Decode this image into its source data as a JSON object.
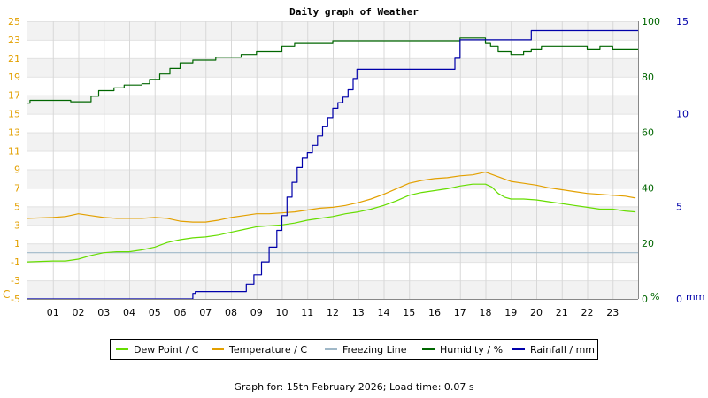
{
  "chart_data": {
    "type": "line",
    "title": "Daily graph of Weather",
    "x_tick_labels": [
      "01",
      "02",
      "03",
      "04",
      "05",
      "06",
      "07",
      "08",
      "09",
      "10",
      "11",
      "12",
      "13",
      "14",
      "15",
      "16",
      "17",
      "18",
      "19",
      "20",
      "21",
      "22",
      "23"
    ],
    "x_range_hours": [
      0,
      24
    ],
    "axes": {
      "temperature": {
        "min": -5,
        "max": 25,
        "ticks": [
          -5,
          -3,
          -1,
          1,
          3,
          5,
          7,
          9,
          11,
          13,
          15,
          17,
          19,
          21,
          23,
          25
        ],
        "unit": "C",
        "color": "#e3a000"
      },
      "humidity": {
        "min": 0,
        "max": 100,
        "ticks": [
          0,
          20,
          40,
          60,
          80,
          100
        ],
        "unit": "%",
        "color": "#006600"
      },
      "rainfall": {
        "min": 0,
        "max": 15,
        "ticks": [
          0,
          5,
          10,
          15
        ],
        "unit": "mm",
        "color": "#0000aa"
      }
    },
    "series": [
      {
        "name": "Dew Point / C",
        "axis": "temperature",
        "color": "#66dd00",
        "x": [
          0,
          1,
          1.5,
          2,
          2.5,
          3,
          3.5,
          4,
          4.5,
          5,
          5.5,
          6,
          6.5,
          7,
          7.5,
          8,
          8.5,
          9,
          9.5,
          10,
          10.5,
          11,
          11.5,
          12,
          12.5,
          13,
          13.5,
          14,
          14.5,
          15,
          15.5,
          16,
          16.5,
          17,
          17.5,
          18,
          18.25,
          18.5,
          18.75,
          19,
          19.5,
          20,
          20.5,
          21,
          21.5,
          22,
          22.5,
          23,
          23.5,
          23.9
        ],
        "values": [
          -1,
          -0.9,
          -0.9,
          -0.7,
          -0.3,
          0,
          0.1,
          0.1,
          0.3,
          0.6,
          1.1,
          1.4,
          1.6,
          1.7,
          1.9,
          2.2,
          2.5,
          2.8,
          2.9,
          3,
          3.2,
          3.5,
          3.7,
          3.9,
          4.2,
          4.4,
          4.7,
          5.1,
          5.6,
          6.2,
          6.5,
          6.7,
          6.9,
          7.2,
          7.4,
          7.4,
          7.1,
          6.4,
          6,
          5.8,
          5.8,
          5.7,
          5.5,
          5.3,
          5.1,
          4.9,
          4.7,
          4.7,
          4.5,
          4.4
        ]
      },
      {
        "name": "Temperature / C",
        "axis": "temperature",
        "color": "#e3a000",
        "x": [
          0,
          1,
          1.5,
          2,
          2.5,
          3,
          3.5,
          4,
          4.5,
          5,
          5.5,
          6,
          6.5,
          7,
          7.5,
          8,
          8.5,
          9,
          9.5,
          10,
          10.5,
          11,
          11.5,
          12,
          12.5,
          13,
          13.5,
          14,
          14.5,
          15,
          15.5,
          16,
          16.5,
          17,
          17.5,
          18,
          18.5,
          19,
          19.5,
          20,
          20.5,
          21,
          21.5,
          22,
          22.5,
          23,
          23.5,
          23.9
        ],
        "values": [
          3.7,
          3.8,
          3.9,
          4.2,
          4,
          3.8,
          3.7,
          3.7,
          3.7,
          3.8,
          3.7,
          3.4,
          3.3,
          3.3,
          3.5,
          3.8,
          4,
          4.2,
          4.2,
          4.3,
          4.4,
          4.6,
          4.8,
          4.9,
          5.1,
          5.4,
          5.8,
          6.3,
          6.9,
          7.5,
          7.8,
          8,
          8.1,
          8.3,
          8.4,
          8.7,
          8.2,
          7.7,
          7.5,
          7.3,
          7,
          6.8,
          6.6,
          6.4,
          6.3,
          6.2,
          6.1,
          5.9
        ]
      },
      {
        "name": "Freezing Line",
        "axis": "temperature",
        "color": "#a0b8c8",
        "x": [
          0,
          24
        ],
        "values": [
          0,
          0
        ]
      },
      {
        "name": "Humidity / %",
        "axis": "humidity",
        "color": "#006600",
        "x": [
          0,
          0.1,
          1.5,
          1.7,
          2.1,
          2.5,
          2.8,
          3.4,
          3.8,
          4.5,
          4.8,
          5.2,
          5.6,
          6,
          6.5,
          7.4,
          8.2,
          8.4,
          9,
          10,
          10.5,
          11.9,
          12,
          12.2,
          13,
          14,
          15,
          16,
          16.8,
          17,
          17.9,
          18,
          18.2,
          18.5,
          19,
          19.5,
          19.8,
          20.2,
          21,
          21.8,
          22,
          22.5,
          23,
          24
        ],
        "values": [
          70.5,
          71.5,
          71.5,
          71,
          71,
          73,
          75,
          76,
          77,
          77.5,
          79,
          81,
          83,
          85,
          86,
          87,
          87,
          88,
          89,
          91,
          92,
          92,
          93,
          93,
          93,
          93,
          93,
          93,
          93,
          94,
          94,
          92,
          91,
          89,
          88,
          89,
          90,
          91,
          91,
          91,
          90,
          91,
          90,
          90
        ]
      },
      {
        "name": "Rainfall / mm",
        "axis": "rainfall",
        "color": "#0000aa",
        "x": [
          0,
          6.05,
          6.5,
          6.6,
          8.3,
          8.6,
          8.9,
          9.2,
          9.5,
          9.8,
          10,
          10.2,
          10.4,
          10.6,
          10.8,
          11,
          11.2,
          11.4,
          11.6,
          11.8,
          12,
          12.2,
          12.4,
          12.6,
          12.8,
          12.95,
          13,
          16.6,
          16.8,
          17,
          18.3,
          19.5,
          19.8,
          20,
          24
        ],
        "values": [
          0,
          0,
          0.3,
          0.4,
          0.4,
          0.8,
          1.3,
          2,
          2.8,
          3.7,
          4.5,
          5.5,
          6.3,
          7.1,
          7.6,
          7.9,
          8.3,
          8.8,
          9.3,
          9.8,
          10.3,
          10.6,
          10.9,
          11.3,
          11.9,
          12.4,
          12.4,
          12.4,
          13,
          14,
          14,
          14,
          14.5,
          14.5,
          14.5
        ]
      }
    ],
    "legend": {
      "placement": "bottom",
      "labels": [
        "Dew Point / C",
        "Temperature / C",
        "Freezing Line",
        "Humidity / %",
        "Rainfall / mm"
      ]
    },
    "grid": true
  },
  "footer": "Graph for: 15th February 2026; Load time: 0.07 s"
}
